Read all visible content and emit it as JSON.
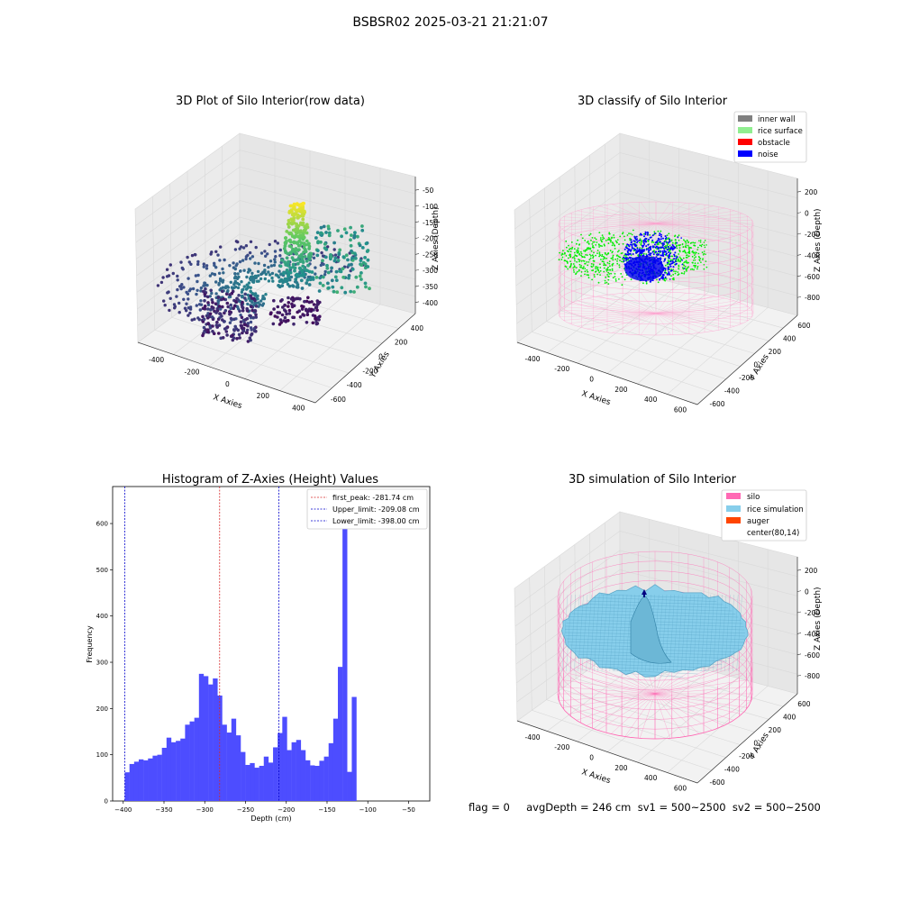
{
  "suptitle": "BSBSR02 2025-03-21 21:21:07",
  "status_line": "flag = 0     avgDepth = 246 cm  sv1 = 500~2500  sv2 = 500~2500",
  "colors": {
    "histogram_bar": "#4d4dff",
    "first_peak_line": "#d62728",
    "limit_line": "#0000cc",
    "inner_wall": "#808080",
    "rice_surface": "#90ee90",
    "obstacle": "#ff0000",
    "noise": "#0000ff",
    "silo": "#ff69b4",
    "rice_simulation": "#87ceeb",
    "auger": "#ff4500",
    "cloud_low": "#440154",
    "cloud_mid": "#21918c",
    "cloud_high": "#fde725"
  },
  "chart_data": [
    {
      "type": "scatter",
      "projection": "3d",
      "title": "3D Plot of Silo Interior(row data)",
      "xlabel": "X Axies",
      "ylabel": "Y Axies",
      "zlabel": "Z Axies (Depth)",
      "x_ticks": [
        "-400",
        "-200",
        "0",
        "200",
        "400"
      ],
      "y_ticks": [
        "-600",
        "-400",
        "-200",
        "0",
        "200",
        "400"
      ],
      "z_ticks": [
        "-50",
        "-100",
        "-150",
        "-200",
        "-250",
        "-300",
        "-350",
        "-400"
      ],
      "xlim": [
        -500,
        450
      ],
      "ylim": [
        -650,
        450
      ],
      "zlim": [
        -420,
        -40
      ],
      "colormap": "viridis",
      "grid": true
    },
    {
      "type": "scatter",
      "projection": "3d",
      "title": "3D classify of Silo Interior",
      "xlabel": "X Axies",
      "ylabel": "Y Axies",
      "zlabel": "Z Axies (Depth)",
      "x_ticks": [
        "-400",
        "-200",
        "0",
        "200",
        "400",
        "600"
      ],
      "y_ticks": [
        "-600",
        "-400",
        "-200",
        "0",
        "200",
        "400",
        "600"
      ],
      "z_ticks": [
        "200",
        "0",
        "-200",
        "-400",
        "-600",
        "-800"
      ],
      "legend": [
        "inner wall",
        "rice surface",
        "obstacle",
        "noise"
      ],
      "legend_position": "top-right",
      "grid": true
    },
    {
      "type": "bar",
      "title": "Histogram of Z-Axies (Height) Values",
      "xlabel": "Depth (cm)",
      "ylabel": "Frequency",
      "xlim": [
        -413,
        -24
      ],
      "ylim": [
        0,
        680
      ],
      "x_ticks": [
        -400,
        -350,
        -300,
        -250,
        -200,
        -150,
        -100,
        -50
      ],
      "y_ticks": [
        0,
        100,
        200,
        300,
        400,
        500,
        600
      ],
      "bin_start": -398,
      "bin_width": 5.68,
      "values": [
        62,
        80,
        85,
        90,
        88,
        92,
        98,
        100,
        115,
        137,
        127,
        130,
        135,
        165,
        172,
        180,
        275,
        270,
        252,
        265,
        228,
        165,
        148,
        178,
        142,
        106,
        78,
        82,
        72,
        76,
        96,
        83,
        116,
        147,
        182,
        110,
        127,
        132,
        110,
        88,
        77,
        76,
        87,
        96,
        125,
        178,
        290,
        650,
        63,
        225
      ],
      "vlines": [
        {
          "label": "first_peak: -281.74 cm",
          "x": -281.74,
          "color": "#d62728"
        },
        {
          "label": "Upper_limit: -209.08 cm",
          "x": -209.08,
          "color": "#0000cc"
        },
        {
          "label": "Lower_limit: -398.00 cm",
          "x": -398.0,
          "color": "#0000cc"
        }
      ],
      "legend_position": "top-right",
      "grid": false
    },
    {
      "type": "area",
      "projection": "3d",
      "title": "3D simulation of Silo Interior",
      "xlabel": "X Axies",
      "ylabel": "Y Axies",
      "zlabel": "Z Axies (Depth)",
      "x_ticks": [
        "-400",
        "-200",
        "0",
        "200",
        "400",
        "600"
      ],
      "y_ticks": [
        "-600",
        "-400",
        "-200",
        "0",
        "200",
        "400",
        "600"
      ],
      "z_ticks": [
        "200",
        "0",
        "-200",
        "-400",
        "-600",
        "-800"
      ],
      "legend": [
        "silo",
        "rice simulation",
        "auger",
        "center(80,14)"
      ],
      "legend_position": "top-right",
      "grid": true
    }
  ]
}
